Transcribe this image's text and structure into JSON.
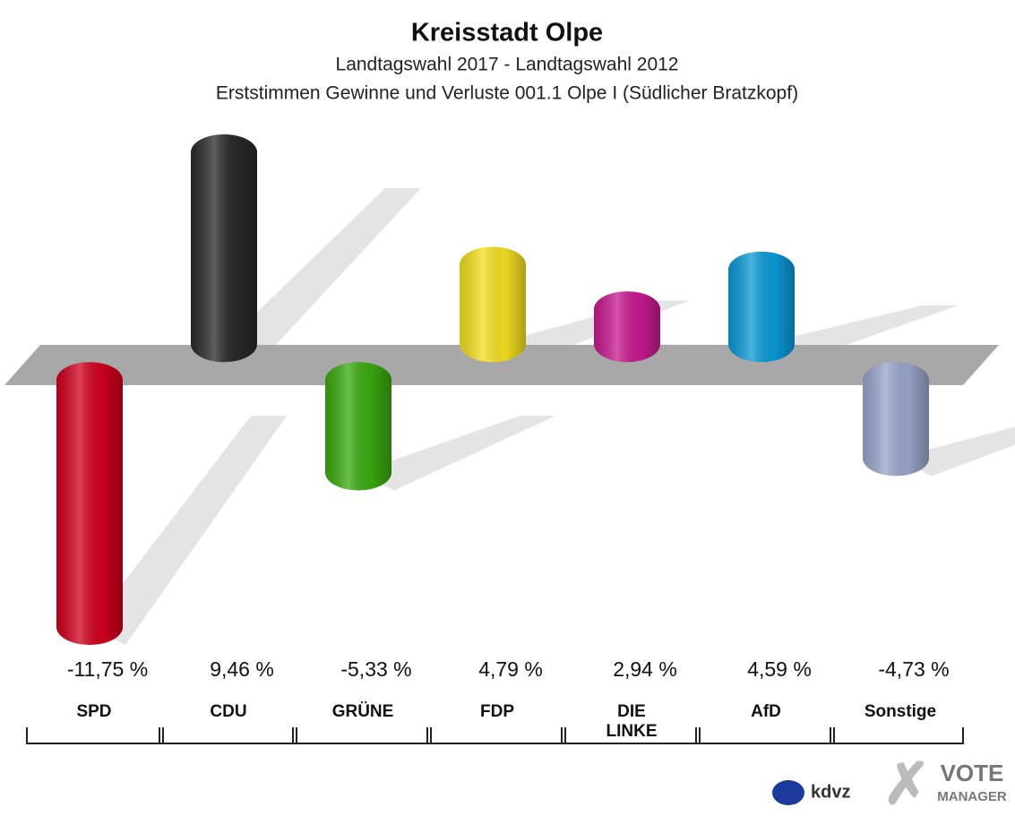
{
  "chart_data": {
    "type": "bar",
    "title": "Kreisstadt Olpe",
    "subtitle": "Landtagswahl 2017 - Landtagswahl 2012",
    "subtitle2": "Erststimmen Gewinne und Verluste 001.1 Olpe I (Südlicher Bratzkopf)",
    "categories": [
      "SPD",
      "CDU",
      "GRÜNE",
      "FDP",
      "DIE LINKE",
      "AfD",
      "Sonstige"
    ],
    "values": [
      -11.75,
      9.46,
      -5.33,
      4.79,
      2.94,
      4.59,
      -4.73
    ],
    "value_labels": [
      "-11,75 %",
      "9,46 %",
      "-5,33 %",
      "4,79 %",
      "2,94 %",
      "4,59 %",
      "-4,73 %"
    ],
    "colors": [
      "#d0001f",
      "#2a2a2a",
      "#3aaa10",
      "#f5e020",
      "#c81a8f",
      "#0a9ad8",
      "#9aa6cc"
    ],
    "annotations": [
      "kdvz",
      "VOTE",
      "MANAGER"
    ]
  }
}
